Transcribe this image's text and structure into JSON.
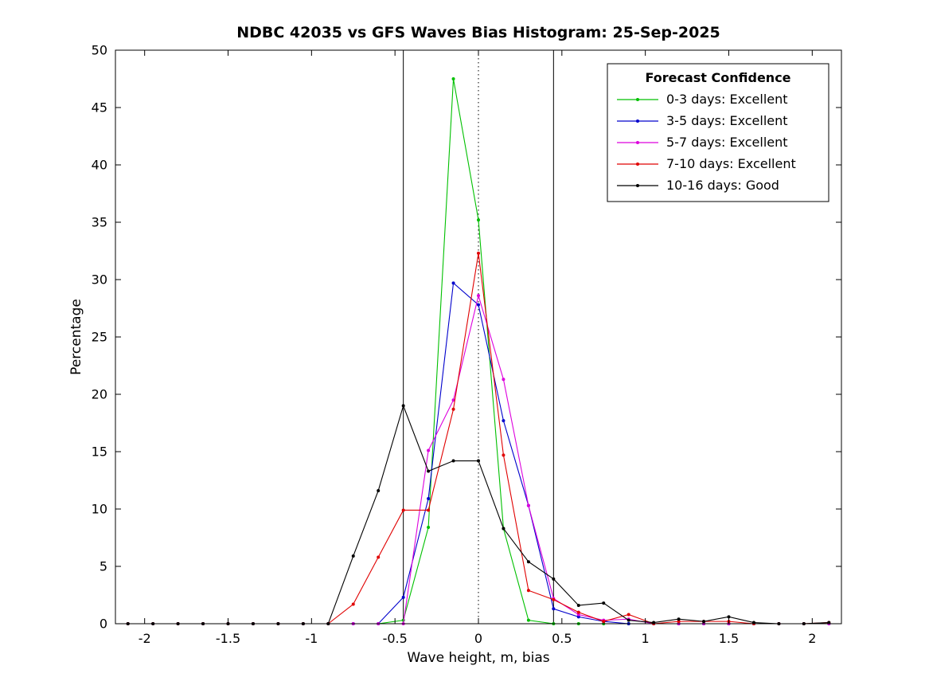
{
  "chart_data": {
    "type": "line",
    "title": "NDBC 42035 vs GFS Waves Bias Histogram: 25-Sep-2025",
    "xlabel": "Wave height, m, bias",
    "ylabel": "Percentage",
    "xlim": [
      -2.175,
      2.175
    ],
    "ylim": [
      0,
      50
    ],
    "x_ticks": [
      -2,
      -1.5,
      -1,
      -0.5,
      0,
      0.5,
      1,
      1.5,
      2
    ],
    "x_tick_labels": [
      "-2",
      "-1.5",
      "-1",
      "-0.5",
      "0",
      "0.5",
      "1",
      "1.5",
      "2"
    ],
    "y_ticks": [
      0,
      5,
      10,
      15,
      20,
      25,
      30,
      35,
      40,
      45,
      50
    ],
    "y_tick_labels": [
      "0",
      "5",
      "10",
      "15",
      "20",
      "25",
      "30",
      "35",
      "40",
      "45",
      "50"
    ],
    "grid": false,
    "x": [
      -2.1,
      -1.95,
      -1.8,
      -1.65,
      -1.5,
      -1.35,
      -1.2,
      -1.05,
      -0.9,
      -0.75,
      -0.6,
      -0.45,
      -0.3,
      -0.15,
      0,
      0.15,
      0.3,
      0.45,
      0.6,
      0.75,
      0.9,
      1.05,
      1.2,
      1.35,
      1.5,
      1.65,
      1.8,
      1.95,
      2.1
    ],
    "series": [
      {
        "name": "0-3 days: Excellent",
        "color": "#00c000",
        "values": [
          0,
          0,
          0,
          0,
          0,
          0,
          0,
          0,
          0,
          0,
          0,
          0.3,
          8.4,
          47.5,
          35.2,
          8.3,
          0.3,
          0,
          0,
          0,
          0,
          0,
          0,
          0,
          0,
          0,
          0,
          0,
          0
        ]
      },
      {
        "name": "3-5 days: Excellent",
        "color": "#0000cc",
        "values": [
          0,
          0,
          0,
          0,
          0,
          0,
          0,
          0,
          0,
          0,
          0,
          2.3,
          10.9,
          29.7,
          27.8,
          17.7,
          10.3,
          1.3,
          0.6,
          0.2,
          0,
          0,
          0,
          0,
          0,
          0,
          0,
          0,
          0
        ]
      },
      {
        "name": "5-7 days: Excellent",
        "color": "#dd00dd",
        "values": [
          0,
          0,
          0,
          0,
          0,
          0,
          0,
          0,
          0,
          0,
          0,
          0,
          15.1,
          19.5,
          28.6,
          21.3,
          10.3,
          2.2,
          0.8,
          0.3,
          0.4,
          0,
          0,
          0,
          0,
          0,
          0,
          0,
          0
        ]
      },
      {
        "name": "7-10 days: Excellent",
        "color": "#e00000",
        "values": [
          0,
          0,
          0,
          0,
          0,
          0,
          0,
          0,
          0,
          1.7,
          5.8,
          9.9,
          9.9,
          18.7,
          32.3,
          14.7,
          2.9,
          2.1,
          1.0,
          0.2,
          0.8,
          0,
          0.2,
          0.2,
          0.2,
          0,
          0,
          0,
          0.1
        ]
      },
      {
        "name": "10-16 days: Good",
        "color": "#000000",
        "values": [
          0,
          0,
          0,
          0,
          0,
          0,
          0,
          0,
          0,
          5.9,
          11.6,
          19.0,
          13.3,
          14.2,
          14.2,
          8.3,
          5.4,
          3.9,
          1.6,
          1.8,
          0.3,
          0.1,
          0.4,
          0.2,
          0.6,
          0.1,
          0,
          0,
          0.1
        ]
      }
    ],
    "reference_lines": {
      "solid_vertical_x": [
        -0.45,
        0.45
      ],
      "dotted_vertical_x": [
        0
      ]
    },
    "legend": {
      "title": "Forecast Confidence",
      "position": "top-right"
    },
    "axis_color": "#000000",
    "background_color": "#ffffff"
  }
}
